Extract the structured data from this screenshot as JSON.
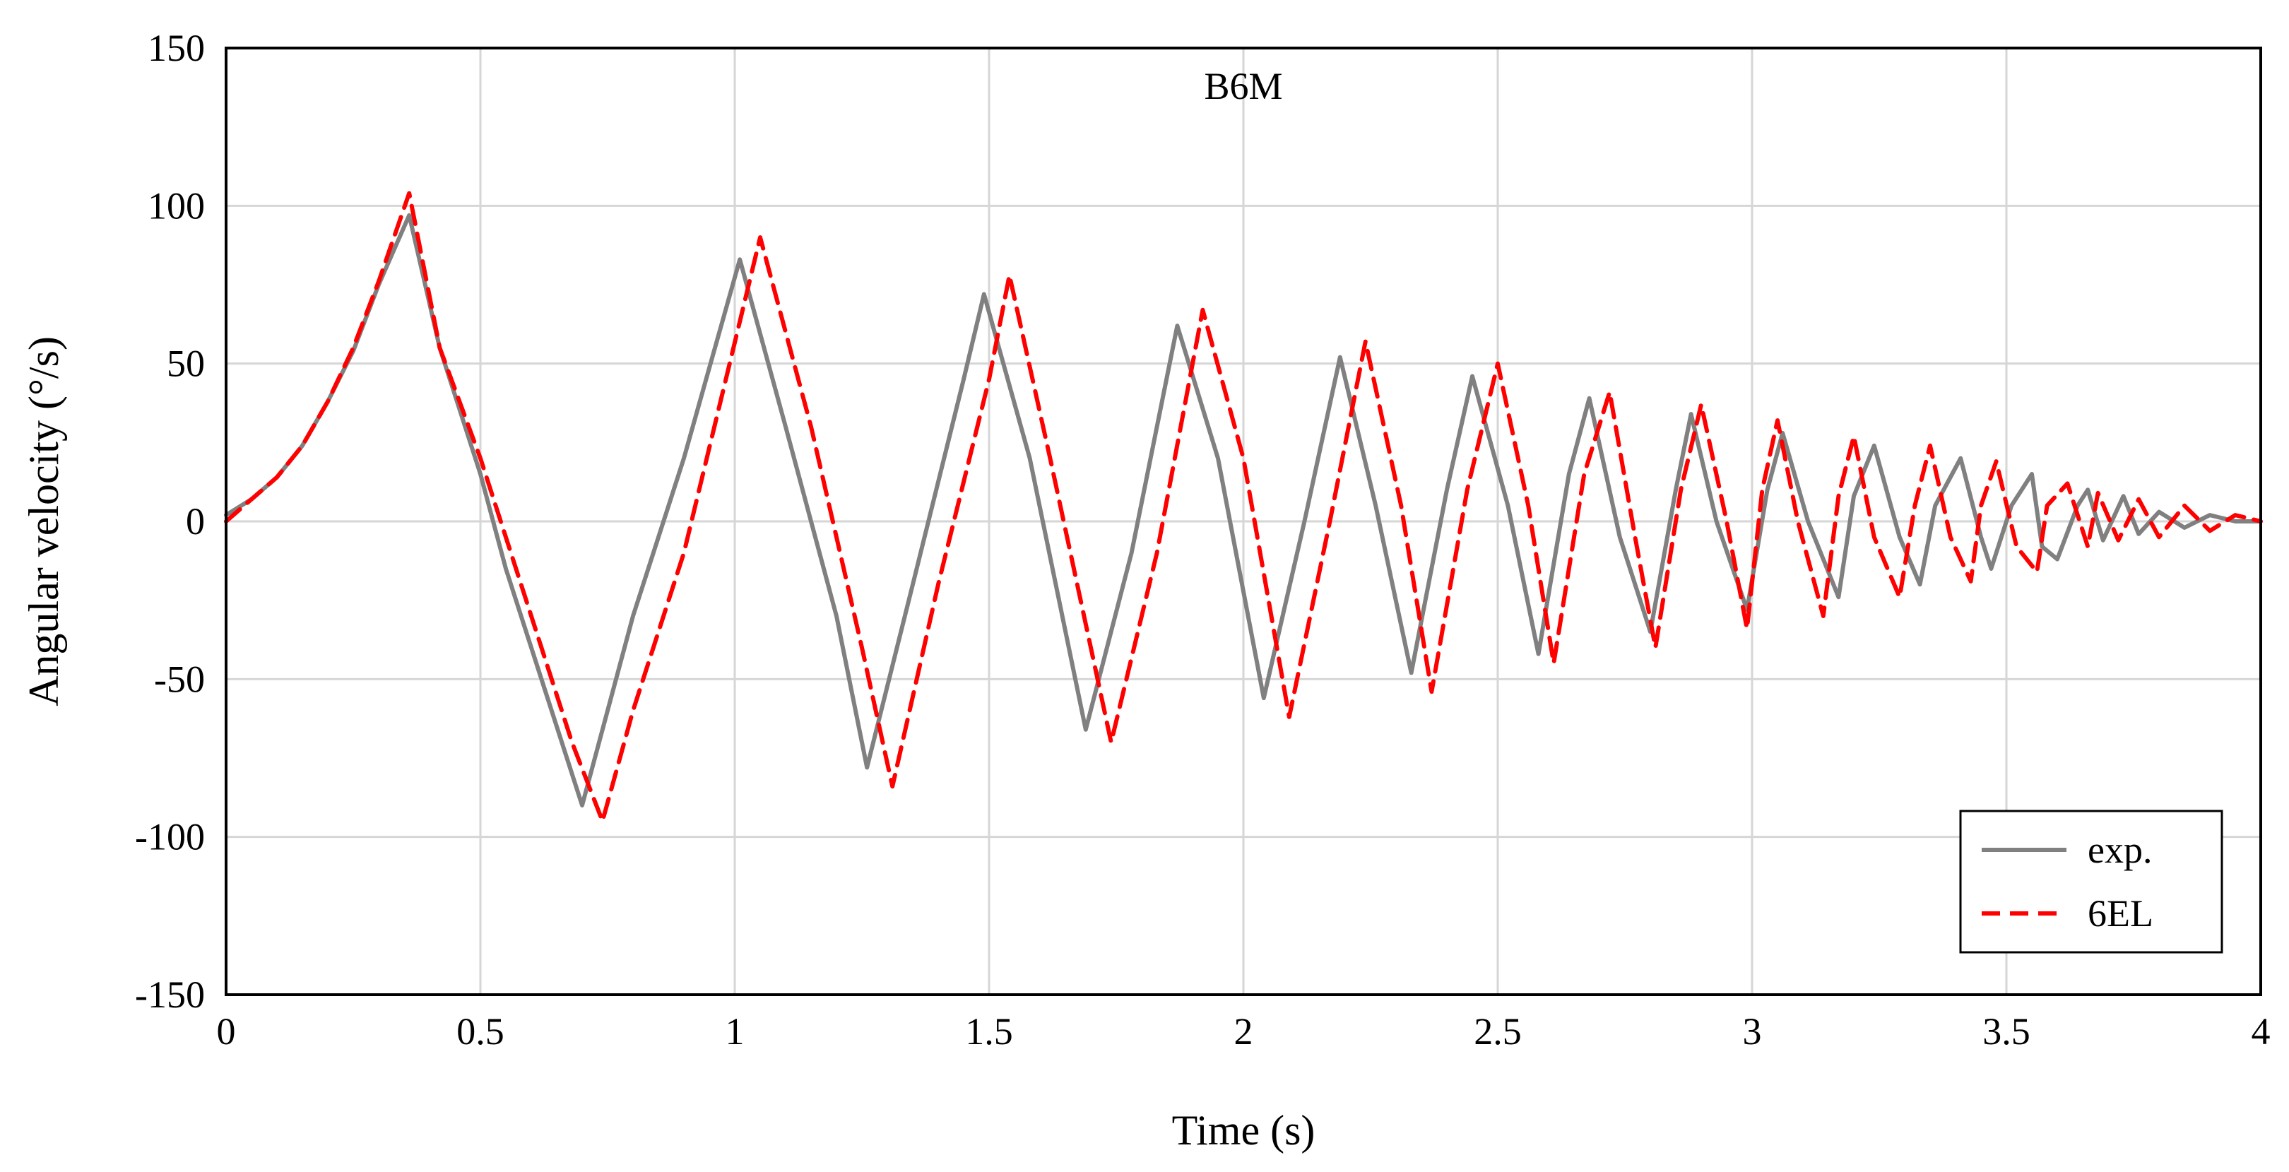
{
  "chart_data": {
    "type": "line",
    "title": "B6M",
    "xlabel": "Time (s)",
    "ylabel": "Angular velocity (°/s)",
    "xlim": [
      0,
      4
    ],
    "ylim": [
      -150,
      150
    ],
    "x_ticks": [
      0,
      0.5,
      1,
      1.5,
      2,
      2.5,
      3,
      3.5,
      4
    ],
    "x_tick_labels": [
      "0",
      "0.5",
      "1",
      "1.5",
      "2",
      "2.5",
      "3",
      "3.5",
      "4"
    ],
    "y_ticks": [
      150,
      100,
      50,
      0,
      -50,
      -100,
      -150
    ],
    "y_tick_labels": [
      "150",
      "100",
      "50",
      "0",
      "-50",
      "-100",
      "-150"
    ],
    "grid": true,
    "legend_position": "bottom-right",
    "series": [
      {
        "name": "exp.",
        "color": "#808080",
        "dash": "solid",
        "x": [
          0,
          0.05,
          0.1,
          0.15,
          0.2,
          0.25,
          0.3,
          0.36,
          0.42,
          0.5,
          0.55,
          0.6,
          0.65,
          0.7,
          0.75,
          0.8,
          0.9,
          1.01,
          1.1,
          1.2,
          1.26,
          1.35,
          1.45,
          1.49,
          1.58,
          1.69,
          1.78,
          1.87,
          1.95,
          2.04,
          2.12,
          2.19,
          2.26,
          2.33,
          2.4,
          2.45,
          2.52,
          2.58,
          2.64,
          2.68,
          2.74,
          2.8,
          2.85,
          2.88,
          2.93,
          2.99,
          3.03,
          3.06,
          3.11,
          3.17,
          3.2,
          3.24,
          3.29,
          3.33,
          3.36,
          3.41,
          3.45,
          3.47,
          3.51,
          3.55,
          3.57,
          3.6,
          3.64,
          3.66,
          3.69,
          3.73,
          3.76,
          3.8,
          3.85,
          3.9,
          3.95,
          4.0
        ],
        "y": [
          2,
          7,
          14,
          24,
          38,
          54,
          75,
          97,
          55,
          15,
          -15,
          -40,
          -65,
          -90,
          -60,
          -30,
          20,
          83,
          30,
          -30,
          -78,
          -20,
          45,
          72,
          20,
          -66,
          -10,
          62,
          20,
          -56,
          0,
          52,
          5,
          -48,
          10,
          46,
          5,
          -42,
          15,
          39,
          -5,
          -35,
          10,
          34,
          0,
          -28,
          10,
          28,
          0,
          -24,
          8,
          24,
          -5,
          -20,
          5,
          20,
          -5,
          -15,
          5,
          15,
          -8,
          -12,
          5,
          10,
          -6,
          8,
          -4,
          3,
          -2,
          2,
          0,
          0
        ]
      },
      {
        "name": "6EL",
        "color": "#ff0000",
        "dash": "dashed",
        "x": [
          0,
          0.05,
          0.1,
          0.15,
          0.2,
          0.25,
          0.3,
          0.36,
          0.42,
          0.5,
          0.56,
          0.62,
          0.68,
          0.74,
          0.8,
          0.9,
          1.05,
          1.15,
          1.25,
          1.31,
          1.4,
          1.5,
          1.54,
          1.62,
          1.74,
          1.83,
          1.92,
          2.0,
          2.09,
          2.17,
          2.24,
          2.31,
          2.37,
          2.44,
          2.5,
          2.56,
          2.61,
          2.67,
          2.72,
          2.77,
          2.81,
          2.86,
          2.9,
          2.95,
          2.99,
          3.02,
          3.05,
          3.09,
          3.14,
          3.17,
          3.2,
          3.24,
          3.29,
          3.32,
          3.35,
          3.39,
          3.43,
          3.45,
          3.48,
          3.52,
          3.56,
          3.58,
          3.62,
          3.66,
          3.68,
          3.72,
          3.76,
          3.8,
          3.85,
          3.9,
          3.95,
          4.0
        ],
        "y": [
          0,
          7,
          14,
          24,
          38,
          55,
          76,
          104,
          55,
          20,
          -10,
          -40,
          -70,
          -95,
          -60,
          -10,
          90,
          30,
          -40,
          -84,
          -20,
          45,
          78,
          20,
          -70,
          -10,
          67,
          20,
          -62,
          0,
          57,
          5,
          -54,
          10,
          50,
          5,
          -45,
          15,
          41,
          -5,
          -40,
          10,
          37,
          0,
          -34,
          10,
          32,
          0,
          -30,
          8,
          27,
          -5,
          -24,
          5,
          24,
          -5,
          -19,
          5,
          19,
          -8,
          -16,
          5,
          12,
          -8,
          9,
          -6,
          7,
          -5,
          5,
          -3,
          2,
          0
        ]
      }
    ]
  }
}
